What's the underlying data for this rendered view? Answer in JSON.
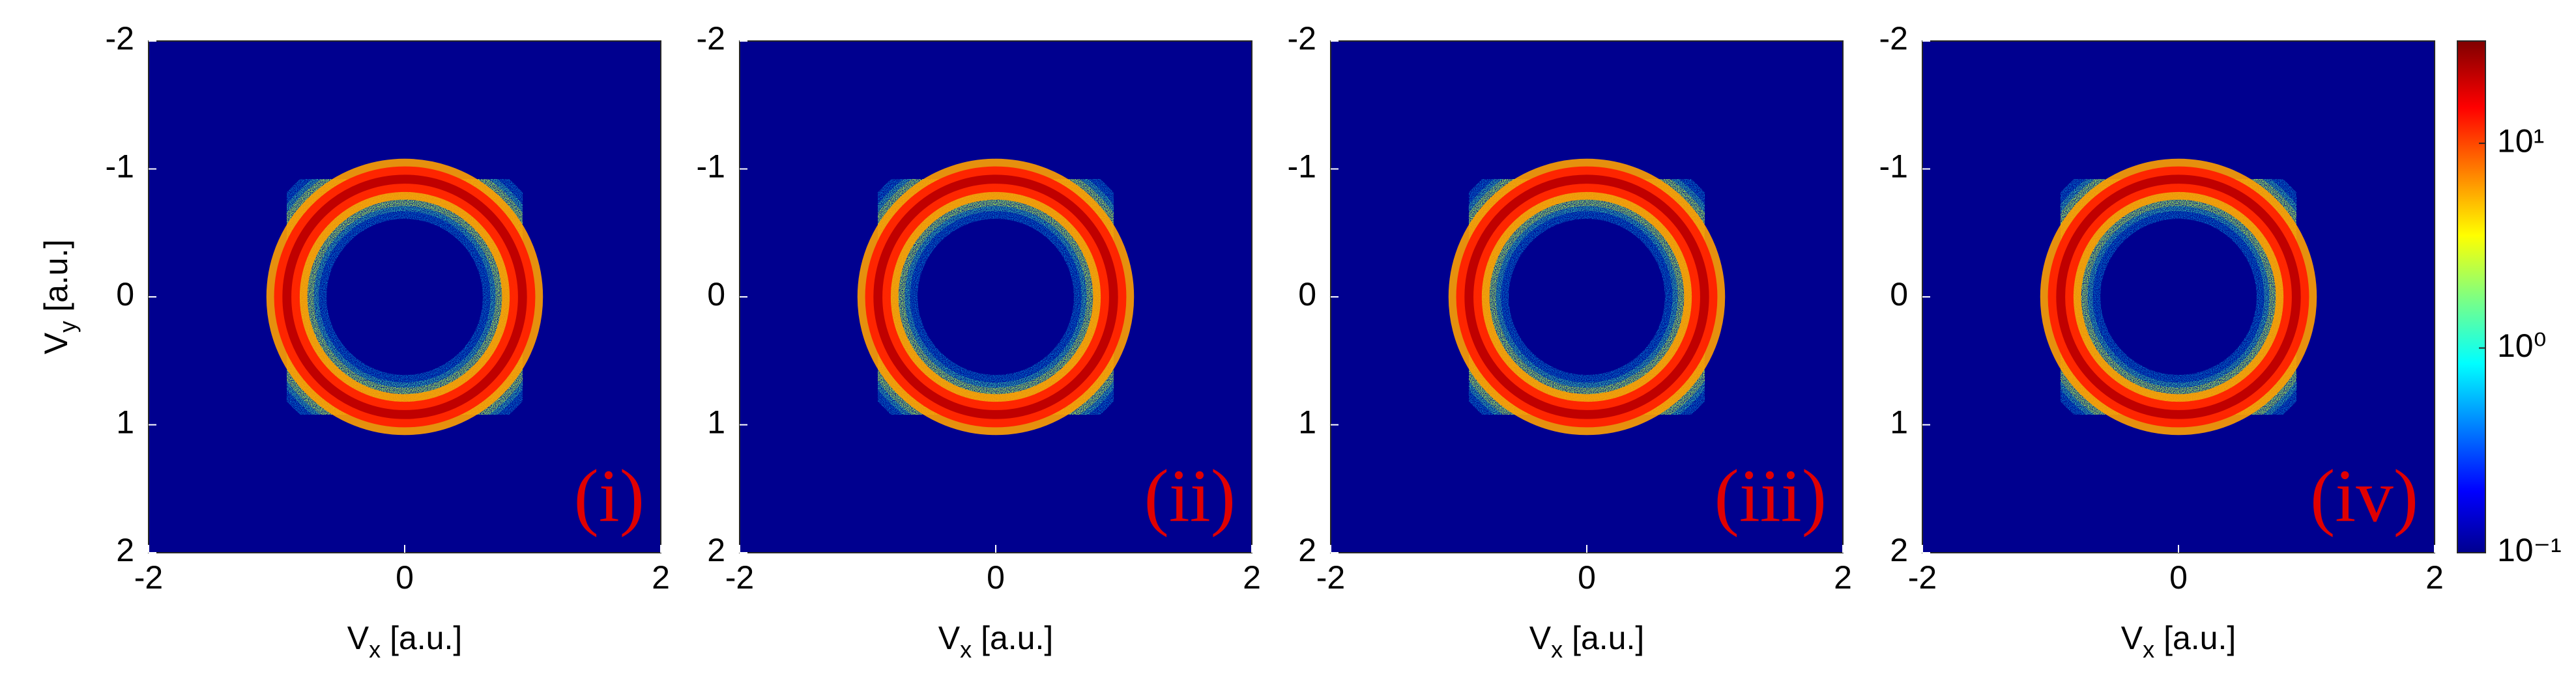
{
  "chart_data": [
    {
      "type": "heatmap",
      "xlim": [
        -2,
        2
      ],
      "ylim": [
        2,
        -2
      ],
      "xticks": [
        -2,
        0,
        2
      ],
      "yticks": [
        -2,
        -1,
        0,
        1,
        2
      ],
      "xlabel": [
        "V",
        "x",
        "[a.u.]"
      ],
      "ylabel": [
        "V",
        "y",
        "[a.u.]"
      ],
      "panel_label": "(i)",
      "ring": {
        "center": [
          0,
          0
        ],
        "radius": 0.92
      }
    },
    {
      "type": "heatmap",
      "xlim": [
        -2,
        2
      ],
      "ylim": [
        2,
        -2
      ],
      "xticks": [
        -2,
        0,
        2
      ],
      "yticks": [
        -2,
        -1,
        0,
        1,
        2
      ],
      "xlabel": [
        "V",
        "x",
        "[a.u.]"
      ],
      "panel_label": "(ii)",
      "ring": {
        "center": [
          0,
          0
        ],
        "radius": 0.92
      }
    },
    {
      "type": "heatmap",
      "xlim": [
        -2,
        2
      ],
      "ylim": [
        2,
        -2
      ],
      "xticks": [
        -2,
        0,
        2
      ],
      "yticks": [
        -2,
        -1,
        0,
        1,
        2
      ],
      "xlabel": [
        "V",
        "x",
        "[a.u.]"
      ],
      "panel_label": "(iii)",
      "ring": {
        "center": [
          0,
          0
        ],
        "radius": 0.92
      }
    },
    {
      "type": "heatmap",
      "xlim": [
        -2,
        2
      ],
      "ylim": [
        2,
        -2
      ],
      "xticks": [
        -2,
        0,
        2
      ],
      "yticks": [
        -2,
        -1,
        0,
        1,
        2
      ],
      "xlabel": [
        "V",
        "x",
        "[a.u.]"
      ],
      "panel_label": "(iv)",
      "ring": {
        "center": [
          0,
          0
        ],
        "radius": 0.92
      }
    }
  ],
  "colorbar": {
    "colormap": "jet",
    "log": true,
    "clim": [
      0.1,
      31.6
    ],
    "ticks": [
      {
        "value": 0.1,
        "label": "10⁻¹"
      },
      {
        "value": 1,
        "label": "10⁰"
      },
      {
        "value": 10,
        "label": "10¹"
      }
    ]
  }
}
